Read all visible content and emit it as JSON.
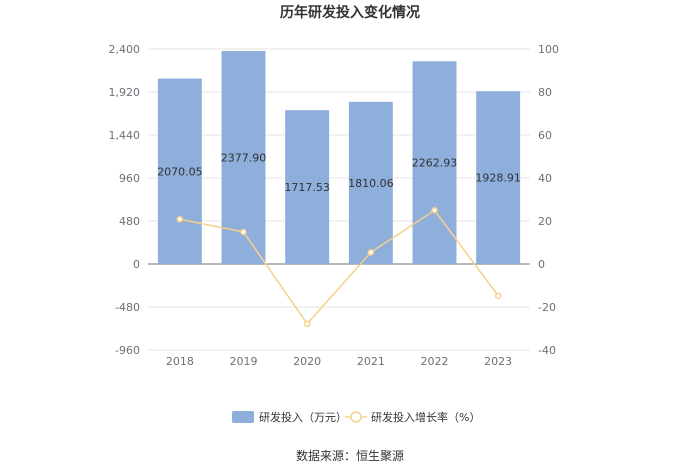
{
  "chart_data": {
    "type": "bar",
    "title": "历年研发投入变化情况",
    "categories": [
      "2018",
      "2019",
      "2020",
      "2021",
      "2022",
      "2023"
    ],
    "series": [
      {
        "name": "研发投入（万元）",
        "type": "bar",
        "axis": "left",
        "values": [
          2070.05,
          2377.9,
          1717.53,
          1810.06,
          2262.93,
          1928.91
        ],
        "labels": [
          "2070.05",
          "2377.90",
          "1717.53",
          "1810.06",
          "2262.93",
          "1928.91"
        ],
        "color": "#8eaedc"
      },
      {
        "name": "研发投入增长率（%）",
        "type": "line",
        "axis": "right",
        "values": [
          20.8,
          14.9,
          -27.8,
          5.4,
          25.0,
          -14.8
        ],
        "color": "#f7d08a"
      }
    ],
    "y_left": {
      "ylim": [
        -960,
        2400
      ],
      "ticks": [
        "2,400",
        "1,920",
        "1,440",
        "960",
        "480",
        "0",
        "-480",
        "-960"
      ]
    },
    "y_right": {
      "ylim": [
        -40,
        100
      ],
      "ticks": [
        "100",
        "80",
        "60",
        "40",
        "20",
        "0",
        "-20",
        "-40"
      ]
    },
    "grid": true,
    "legend_position": "bottom",
    "source": "数据来源：恒生聚源"
  }
}
